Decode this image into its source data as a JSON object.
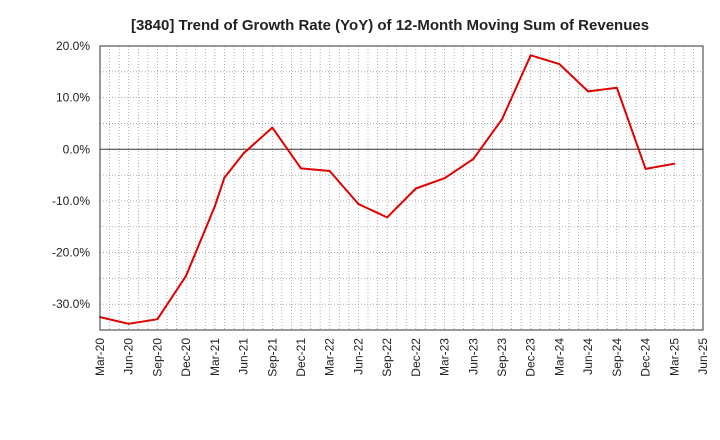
{
  "chart_data": {
    "type": "line",
    "title": "[3840]  Trend of Growth Rate (YoY) of 12-Month Moving Sum of Revenues",
    "xlabel": "",
    "ylabel": "",
    "ylim": [
      -35,
      20
    ],
    "y_ticks": [
      20,
      10,
      0,
      -10,
      -20,
      -30
    ],
    "y_tick_labels": [
      "20.0%",
      "10.0%",
      "0.0%",
      "-10.0%",
      "-20.0%",
      "-30.0%"
    ],
    "x_tick_labels": [
      "Mar-20",
      "Jun-20",
      "Sep-20",
      "Dec-20",
      "Mar-21",
      "Jun-21",
      "Sep-21",
      "Dec-21",
      "Mar-22",
      "Jun-22",
      "Sep-22",
      "Dec-22",
      "Mar-23",
      "Jun-23",
      "Sep-23",
      "Dec-23",
      "Mar-24",
      "Jun-24",
      "Sep-24",
      "Dec-24",
      "Mar-25",
      "Jun-25"
    ],
    "grid": true,
    "series": [
      {
        "name": "",
        "color": "#e00000",
        "points": [
          {
            "x": "Mar-20",
            "y": -32.5
          },
          {
            "x": "Jun-20",
            "y": -33.8
          },
          {
            "x": "Sep-20",
            "y": -32.9
          },
          {
            "x": "Dec-20",
            "y": -24.5
          },
          {
            "x": "Mar-21",
            "y": -11.0
          },
          {
            "x": "Apr-21",
            "y": -5.5
          },
          {
            "x": "Jun-21",
            "y": -0.8
          },
          {
            "x": "Sep-21",
            "y": 4.2
          },
          {
            "x": "Dec-21",
            "y": -3.7
          },
          {
            "x": "Mar-22",
            "y": -4.2
          },
          {
            "x": "Jun-22",
            "y": -10.6
          },
          {
            "x": "Sep-22",
            "y": -13.2
          },
          {
            "x": "Dec-22",
            "y": -7.6
          },
          {
            "x": "Mar-23",
            "y": -5.6
          },
          {
            "x": "Jun-23",
            "y": -1.9
          },
          {
            "x": "Sep-23",
            "y": 5.8
          },
          {
            "x": "Dec-23",
            "y": 18.2
          },
          {
            "x": "Mar-24",
            "y": 16.5
          },
          {
            "x": "Jun-24",
            "y": 11.2
          },
          {
            "x": "Sep-24",
            "y": 11.9
          },
          {
            "x": "Dec-24",
            "y": -3.8
          },
          {
            "x": "Mar-25",
            "y": -2.8
          }
        ]
      }
    ]
  }
}
